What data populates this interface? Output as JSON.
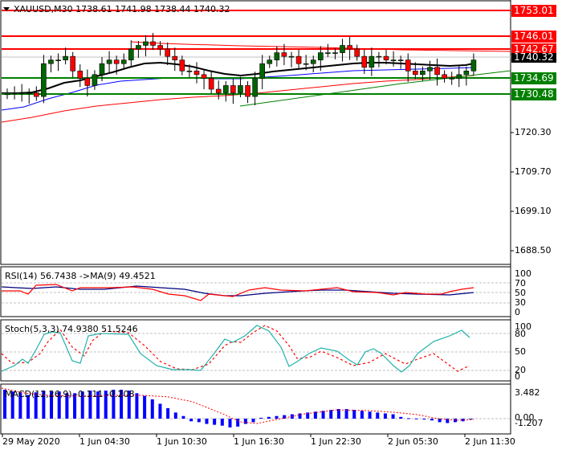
{
  "header": {
    "symbol_line": "XAUUSD,M30  1738.61 1741.98 1738.44 1740.32",
    "menu_icon": "triangle-down-icon"
  },
  "price_axis": {
    "labels": [
      "1720.30",
      "1709.70",
      "1699.10",
      "1688.50"
    ],
    "current_price": "1740.32"
  },
  "levels": {
    "resistance": [
      "1753.01",
      "1746.01",
      "1742.67"
    ],
    "support": [
      "1734.69",
      "1730.48"
    ]
  },
  "rsi": {
    "title": "RSI(14) 56.7438  ->MA(9) 49.4521",
    "axis": [
      "100",
      "70",
      "50",
      "30",
      "0"
    ]
  },
  "stoch": {
    "title": "Stoch(5,3,3) 74.9380 51.5246",
    "axis": [
      "100",
      "80",
      "50",
      "20",
      "0"
    ]
  },
  "macd": {
    "title": "MACD(12,26,9) -0.111 -0.208",
    "axis": [
      "3.482",
      "0.00",
      "-1.207"
    ]
  },
  "time_axis": {
    "labels": [
      "29 May 2020",
      "1 Jun 04:30",
      "1 Jun 10:30",
      "1 Jun 16:30",
      "1 Jun 22:30",
      "2 Jun 05:30",
      "2 Jun 11:30"
    ]
  },
  "colors": {
    "bull": "#006400",
    "bear": "#ff0000",
    "resistance": "#ff0000",
    "support": "#008000",
    "ma_fast": "#000000",
    "ma_mid": "#0000ff",
    "ma_slow": "#ff0000",
    "rsi": "#ff0000",
    "rsi_ma": "#000080",
    "stoch_main": "#20b2aa",
    "stoch_signal": "#ff0000",
    "macd_hist": "#0000ff",
    "macd_signal": "#ff0000"
  },
  "chart_data": [
    {
      "type": "candlestick",
      "title": "XAUUSD,M30",
      "ohlc_last": {
        "open": 1738.61,
        "high": 1741.98,
        "low": 1738.44,
        "close": 1740.32
      },
      "ylim": [
        1684,
        1756
      ],
      "y_ticks": [
        1720.3,
        1709.7,
        1699.1,
        1688.5
      ],
      "horizontal_lines": [
        {
          "value": 1753.01,
          "color": "red"
        },
        {
          "value": 1746.01,
          "color": "red"
        },
        {
          "value": 1742.67,
          "color": "red"
        },
        {
          "value": 1734.69,
          "color": "green"
        },
        {
          "value": 1730.48,
          "color": "green"
        }
      ],
      "closes": [
        1731,
        1731,
        1731,
        1731,
        1730,
        1739,
        1740,
        1740,
        1741,
        1737,
        1735,
        1733,
        1736,
        1739,
        1740,
        1739,
        1740,
        1743,
        1744,
        1745,
        1744,
        1743,
        1741,
        1740,
        1737,
        1737,
        1736,
        1735,
        1732,
        1731,
        1733,
        1731,
        1733,
        1730,
        1735,
        1739,
        1740,
        1742,
        1741,
        1741,
        1739,
        1739,
        1740,
        1742,
        1742,
        1742,
        1744,
        1743,
        1741,
        1738,
        1741,
        1741,
        1740,
        1740,
        1740,
        1737,
        1736,
        1737,
        1738,
        1736,
        1735,
        1735,
        1736,
        1737,
        1740
      ],
      "x_labels": [
        "29 May 2020",
        "1 Jun 04:30",
        "1 Jun 10:30",
        "1 Jun 16:30",
        "1 Jun 22:30",
        "2 Jun 05:30",
        "2 Jun 11:30"
      ]
    },
    {
      "type": "line",
      "title": "RSI(14)",
      "series": [
        {
          "name": "RSI",
          "last": 56.7438
        },
        {
          "name": "MA(9)",
          "last": 49.4521
        }
      ],
      "ylim": [
        0,
        100
      ],
      "levels": [
        70,
        50,
        30
      ]
    },
    {
      "type": "line",
      "title": "Stoch(5,3,3)",
      "series": [
        {
          "name": "%K",
          "last": 74.938,
          "values": [
            20,
            25,
            28,
            35,
            30,
            55,
            80,
            100,
            95,
            60,
            40,
            38,
            60,
            85,
            90,
            90,
            88,
            85,
            60,
            40,
            30,
            25,
            22,
            20,
            22,
            25,
            20,
            35,
            55,
            60,
            75,
            90,
            100,
            95,
            75,
            45,
            30,
            45,
            60,
            75,
            82,
            80,
            85,
            80,
            55,
            35,
            40,
            50,
            60,
            55,
            40,
            25,
            20,
            45,
            60,
            55,
            40,
            20,
            15,
            30,
            55,
            75
          ]
        },
        {
          "name": "%D",
          "last": 51.5246
        }
      ],
      "ylim": [
        0,
        100
      ],
      "levels": [
        80,
        50,
        20
      ]
    },
    {
      "type": "bar",
      "title": "MACD(12,26,9)",
      "series": [
        {
          "name": "MACD",
          "last": -0.111
        },
        {
          "name": "Signal",
          "last": -0.208
        }
      ],
      "ylim": [
        -1.207,
        3.482
      ]
    }
  ]
}
